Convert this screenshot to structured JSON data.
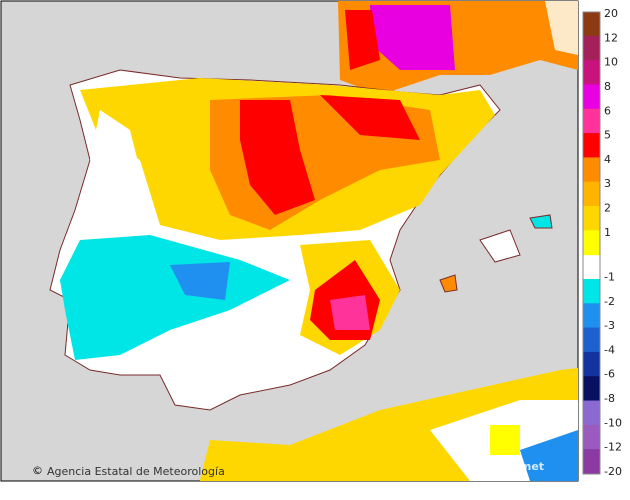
{
  "credit": "Agencia Estatal de Meteorología",
  "watermark": "aemet",
  "legend": {
    "labels": [
      20,
      12,
      10,
      8,
      6,
      5,
      4,
      3,
      2,
      1,
      -1,
      -2,
      -3,
      -4,
      -6,
      -8,
      -10,
      -12,
      -20
    ],
    "colors": [
      "#8b3a12",
      "#a3205a",
      "#c8127e",
      "#e800e0",
      "#ff3399",
      "#ff0000",
      "#ff8c00",
      "#ffb400",
      "#ffd700",
      "#ffff00",
      "#ffffff",
      "#00e6e6",
      "#1f90f0",
      "#1e60d0",
      "#1432a0",
      "#0a1060",
      "#8a6ad0",
      "#9a5ac0",
      "#8a3aa0"
    ]
  }
}
